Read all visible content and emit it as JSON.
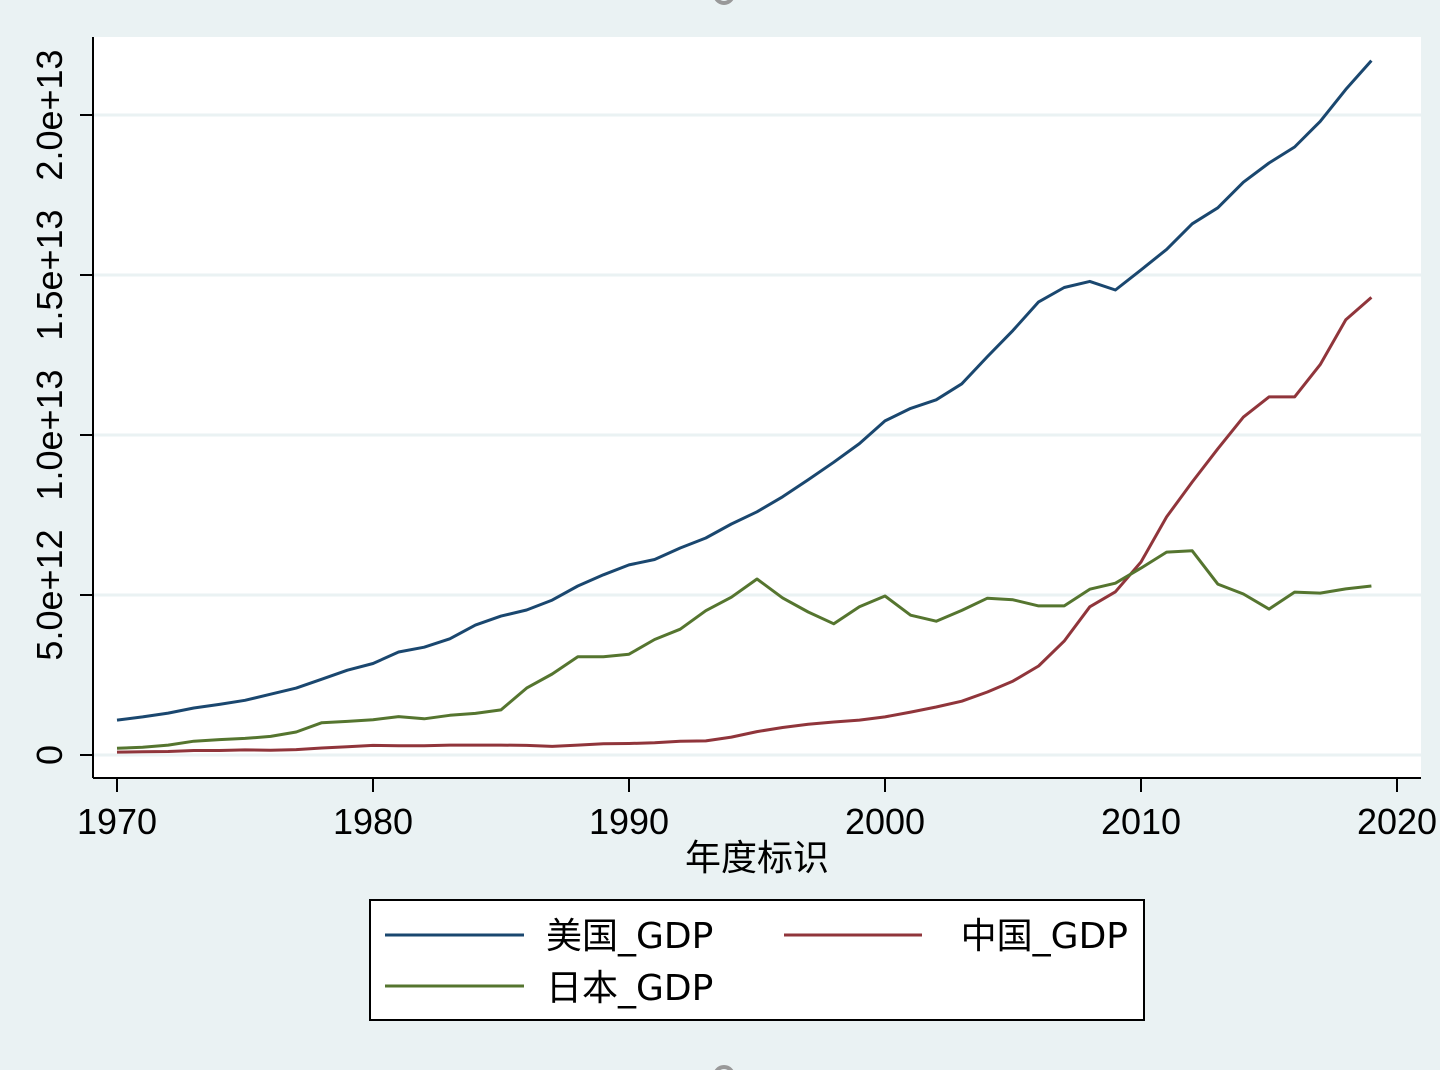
{
  "chart_data": {
    "type": "line",
    "title": "",
    "xlabel": "年度标识",
    "ylabel": "",
    "xlim": [
      1970,
      2020
    ],
    "ylim": [
      0,
      22000000000000.0
    ],
    "grid": true,
    "legend_position": "bottom",
    "x_ticks": [
      1970,
      1980,
      1990,
      2000,
      2010,
      2020
    ],
    "x_tick_labels": [
      "1970",
      "1980",
      "1990",
      "2000",
      "2010",
      "2020"
    ],
    "y_ticks": [
      0,
      5000000000000.0,
      10000000000000.0,
      15000000000000.0,
      20000000000000.0
    ],
    "y_tick_labels": [
      "0",
      "5.0e+12",
      "1.0e+13",
      "1.5e+13",
      "2.0e+13"
    ],
    "x": [
      1970,
      1971,
      1972,
      1973,
      1974,
      1975,
      1976,
      1977,
      1978,
      1979,
      1980,
      1981,
      1982,
      1983,
      1984,
      1985,
      1986,
      1987,
      1988,
      1989,
      1990,
      1991,
      1992,
      1993,
      1994,
      1995,
      1996,
      1997,
      1998,
      1999,
      2000,
      2001,
      2002,
      2003,
      2004,
      2005,
      2006,
      2007,
      2008,
      2009,
      2010,
      2011,
      2012,
      2013,
      2014,
      2015,
      2016,
      2017,
      2018,
      2019
    ],
    "series": [
      {
        "name": "美国_GDP",
        "color": "#1a476f",
        "values": [
          1090000000000.0,
          1190000000000.0,
          1310000000000.0,
          1470000000000.0,
          1580000000000.0,
          1710000000000.0,
          1900000000000.0,
          2090000000000.0,
          2370000000000.0,
          2650000000000.0,
          2860000000000.0,
          3220000000000.0,
          3370000000000.0,
          3630000000000.0,
          4060000000000.0,
          4340000000000.0,
          4530000000000.0,
          4840000000000.0,
          5280000000000.0,
          5630000000000.0,
          5940000000000.0,
          6110000000000.0,
          6470000000000.0,
          6780000000000.0,
          7220000000000.0,
          7600000000000.0,
          8070000000000.0,
          8600000000000.0,
          9150000000000.0,
          9730000000000.0,
          10440000000000.0,
          10830000000000.0,
          11100000000000.0,
          11600000000000.0,
          12450000000000.0,
          13270000000000.0,
          14160000000000.0,
          14610000000000.0,
          14800000000000.0,
          14530000000000.0,
          15160000000000.0,
          15800000000000.0,
          16600000000000.0,
          17100000000000.0,
          17900000000000.0,
          18500000000000.0,
          19000000000000.0,
          19800000000000.0,
          20800000000000.0,
          21700000000000.0
        ]
      },
      {
        "name": "中国_GDP",
        "color": "#90353b",
        "values": [
          90000000000.0,
          100000000000.0,
          110000000000.0,
          140000000000.0,
          140000000000.0,
          160000000000.0,
          150000000000.0,
          170000000000.0,
          220000000000.0,
          260000000000.0,
          300000000000.0,
          290000000000.0,
          290000000000.0,
          310000000000.0,
          310000000000.0,
          310000000000.0,
          300000000000.0,
          270000000000.0,
          310000000000.0,
          350000000000.0,
          360000000000.0,
          380000000000.0,
          430000000000.0,
          440000000000.0,
          560000000000.0,
          730000000000.0,
          860000000000.0,
          960000000000.0,
          1030000000000.0,
          1090000000000.0,
          1190000000000.0,
          1340000000000.0,
          1500000000000.0,
          1680000000000.0,
          1970000000000.0,
          2310000000000.0,
          2780000000000.0,
          3560000000000.0,
          4630000000000.0,
          5100000000000.0,
          6030000000000.0,
          7440000000000.0,
          8530000000000.0,
          9570000000000.0,
          10560000000000.0,
          11190000000000.0,
          11190000000000.0,
          12200000000000.0,
          13600000000000.0,
          14300000000000.0
        ]
      },
      {
        "name": "日本_GDP",
        "color": "#55752f",
        "values": [
          210000000000.0,
          240000000000.0,
          310000000000.0,
          430000000000.0,
          480000000000.0,
          520000000000.0,
          580000000000.0,
          720000000000.0,
          1010000000000.0,
          1050000000000.0,
          1100000000000.0,
          1200000000000.0,
          1130000000000.0,
          1240000000000.0,
          1300000000000.0,
          1410000000000.0,
          2090000000000.0,
          2530000000000.0,
          3070000000000.0,
          3070000000000.0,
          3150000000000.0,
          3610000000000.0,
          3930000000000.0,
          4510000000000.0,
          4930000000000.0,
          5500000000000.0,
          4910000000000.0,
          4470000000000.0,
          4100000000000.0,
          4630000000000.0,
          4970000000000.0,
          4370000000000.0,
          4180000000000.0,
          4520000000000.0,
          4900000000000.0,
          4850000000000.0,
          4660000000000.0,
          4660000000000.0,
          5180000000000.0,
          5370000000000.0,
          5840000000000.0,
          6340000000000.0,
          6380000000000.0,
          5340000000000.0,
          5030000000000.0,
          4560000000000.0,
          5090000000000.0,
          5060000000000.0,
          5190000000000.0,
          5280000000000.0
        ]
      }
    ]
  },
  "colors": {
    "background": "#eaf2f3",
    "plot_background": "#ffffff",
    "gridline": "#eaf2f3",
    "handle": "#999999"
  }
}
